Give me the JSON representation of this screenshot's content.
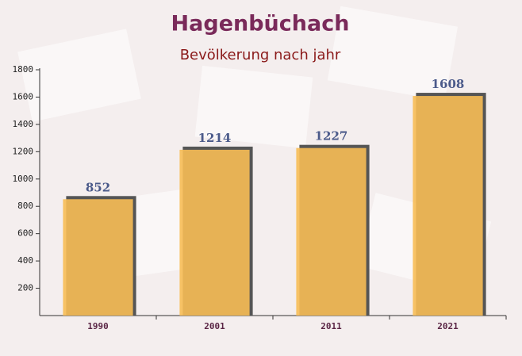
{
  "chart_data": {
    "type": "bar",
    "title": "Hagenbüchach",
    "subtitle": "Bevölkerung nach jahr",
    "categories": [
      "1990",
      "2001",
      "2011",
      "2021"
    ],
    "values": [
      852,
      1214,
      1227,
      1608
    ],
    "color": "#f7bd55",
    "ylim": [
      0,
      1800
    ],
    "yticks": [
      200,
      400,
      600,
      800,
      1000,
      1200,
      1400,
      1600,
      1800
    ]
  }
}
